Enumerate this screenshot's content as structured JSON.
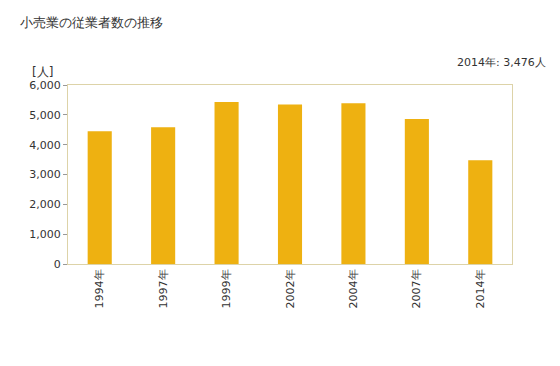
{
  "chart_data": {
    "type": "bar",
    "title": "小売業の従業者数の推移",
    "ylabel": "[人]",
    "annotations": [
      {
        "text": "2014年: 3,476人"
      }
    ],
    "categories": [
      "1994年",
      "1997年",
      "1999年",
      "2002年",
      "2004年",
      "2007年",
      "2014年"
    ],
    "values": [
      4450,
      4580,
      5430,
      5350,
      5390,
      4860,
      3476
    ],
    "color": "#eeb111",
    "ylim": [
      0,
      6000
    ],
    "yticks": [
      0,
      {
        "value": 1000,
        "label": "1,000"
      },
      {
        "value": 2000,
        "label": "2,000"
      },
      {
        "value": 3000,
        "label": "3,000"
      },
      {
        "value": 4000,
        "label": "4,000"
      },
      {
        "value": 5000,
        "label": "5,000"
      },
      {
        "value": 6000,
        "label": "6,000"
      }
    ],
    "grid": false
  }
}
